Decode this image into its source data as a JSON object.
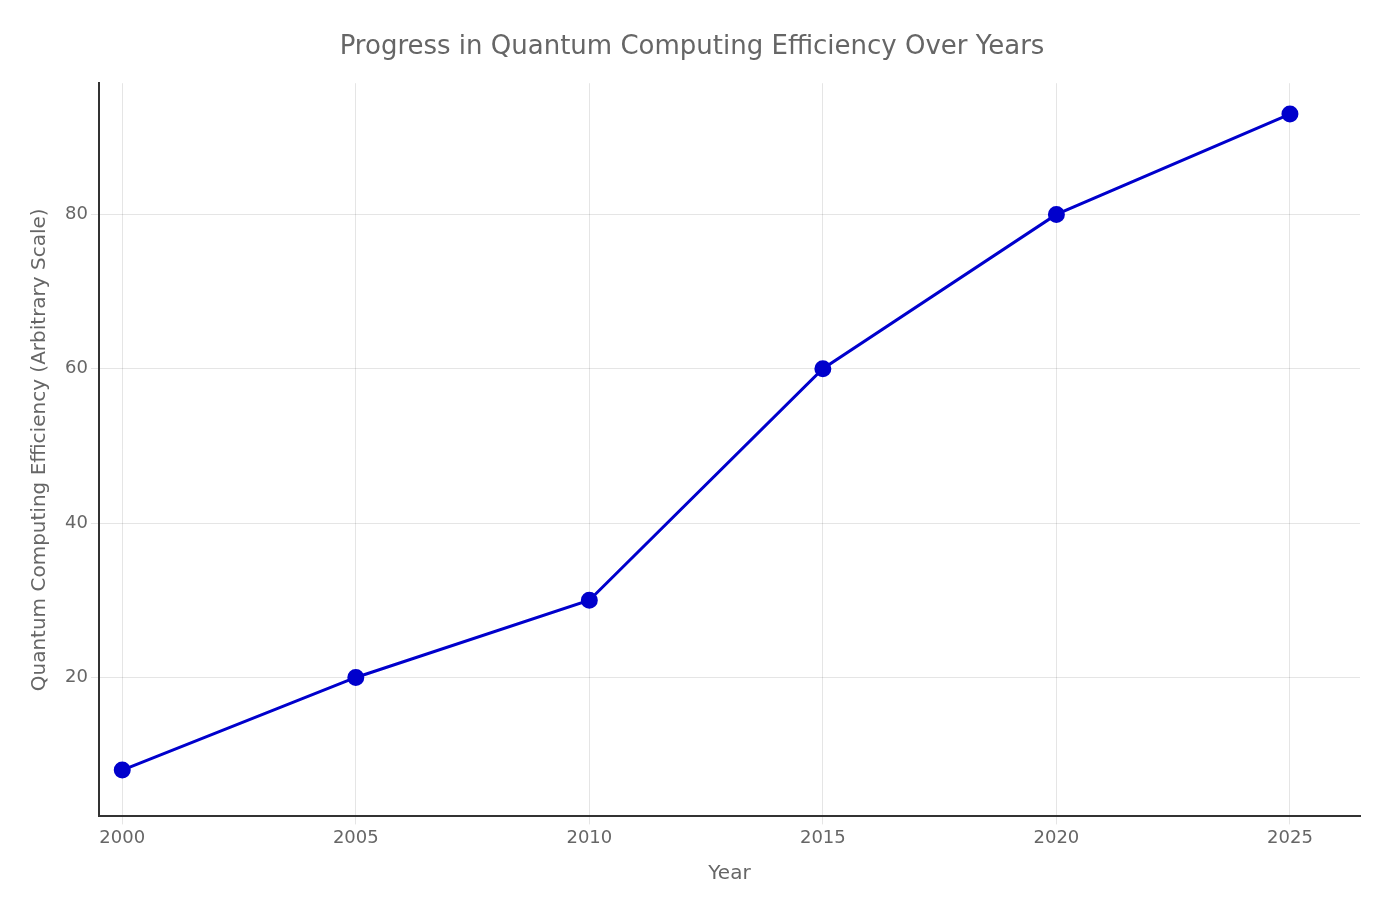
{
  "chart_data": {
    "type": "line",
    "title": "Progress in Quantum Computing Efficiency Over Years",
    "x_label": "Year",
    "y_label": "Quantum Computing Efficiency (Arbitrary Scale)",
    "x": [
      2000,
      2005,
      2010,
      2015,
      2020,
      2025
    ],
    "values": [
      8,
      20,
      30,
      60,
      80,
      93
    ],
    "color": "#0000CC",
    "marker": "circle",
    "xlim": [
      1999.5,
      2026.5
    ],
    "ylim": [
      2,
      97
    ],
    "xticks": [
      2000,
      2005,
      2010,
      2015,
      2020,
      2025
    ],
    "yticks": [
      20,
      40,
      60,
      80
    ],
    "grid": true
  }
}
